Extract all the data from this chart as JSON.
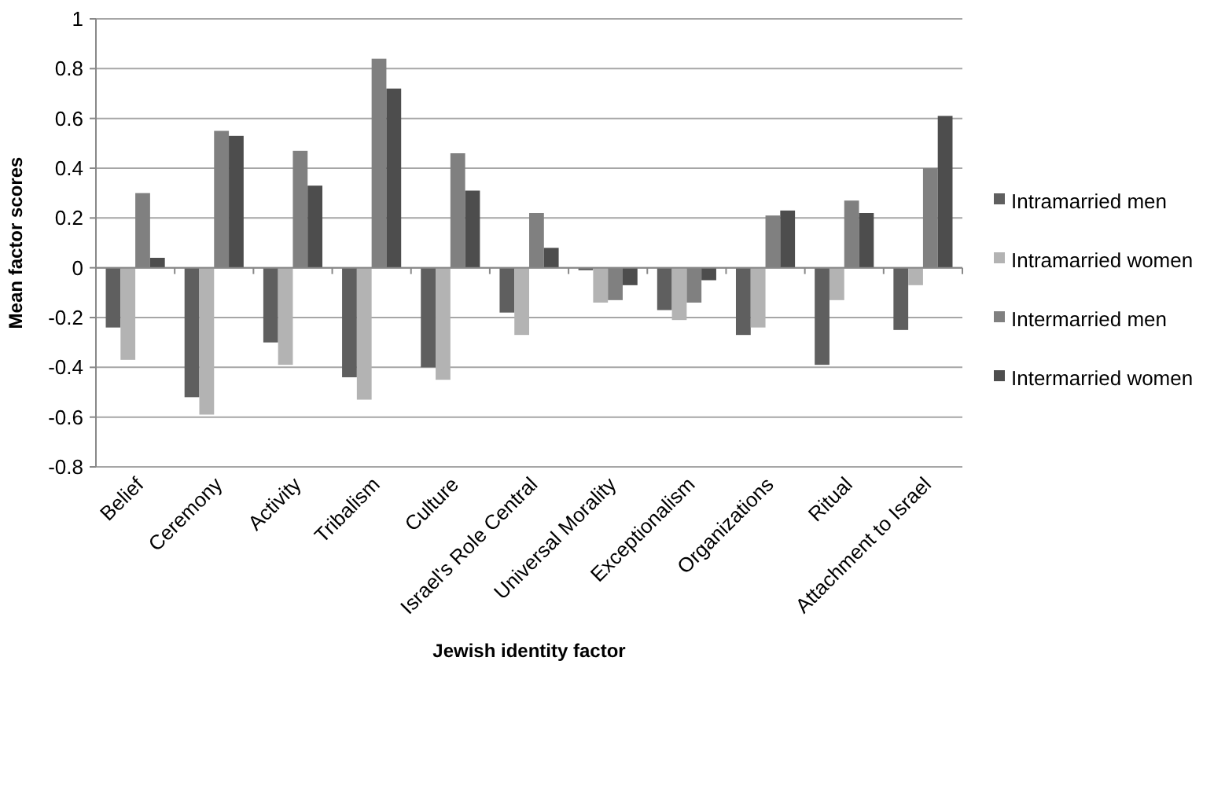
{
  "chart_data": {
    "type": "bar",
    "xlabel": "Jewish identity factor",
    "ylabel": "Mean factor scores",
    "categories": [
      "Belief",
      "Ceremony",
      "Activity",
      "Tribalism",
      "Culture",
      "Israel's Role Central",
      "Universal Morality",
      "Exceptionalism",
      "Organizations",
      "Ritual",
      "Attachment to Israel"
    ],
    "series": [
      {
        "name": "Intramarried men",
        "color": "#5f5f5f",
        "values": [
          -0.24,
          -0.52,
          -0.3,
          -0.44,
          -0.4,
          -0.18,
          -0.01,
          -0.17,
          -0.27,
          -0.39,
          -0.25
        ]
      },
      {
        "name": "Intramarried women",
        "color": "#b3b3b3",
        "values": [
          -0.37,
          -0.59,
          -0.39,
          -0.53,
          -0.45,
          -0.27,
          -0.14,
          -0.21,
          -0.24,
          -0.13,
          -0.07
        ]
      },
      {
        "name": "Intermarried men",
        "color": "#808080",
        "values": [
          0.3,
          0.55,
          0.47,
          0.84,
          0.46,
          0.22,
          -0.13,
          -0.14,
          0.21,
          0.27,
          0.4
        ]
      },
      {
        "name": "Intermarried women",
        "color": "#4d4d4d",
        "values": [
          0.04,
          0.53,
          0.33,
          0.72,
          0.31,
          0.08,
          -0.07,
          -0.05,
          0.23,
          0.22,
          0.61
        ]
      }
    ],
    "ylim": [
      -0.8,
      1
    ],
    "yticks": [
      -0.8,
      -0.6,
      -0.4,
      -0.2,
      0,
      0.2,
      0.4,
      0.6,
      0.8,
      1
    ],
    "grid": "y",
    "legend": "right"
  }
}
